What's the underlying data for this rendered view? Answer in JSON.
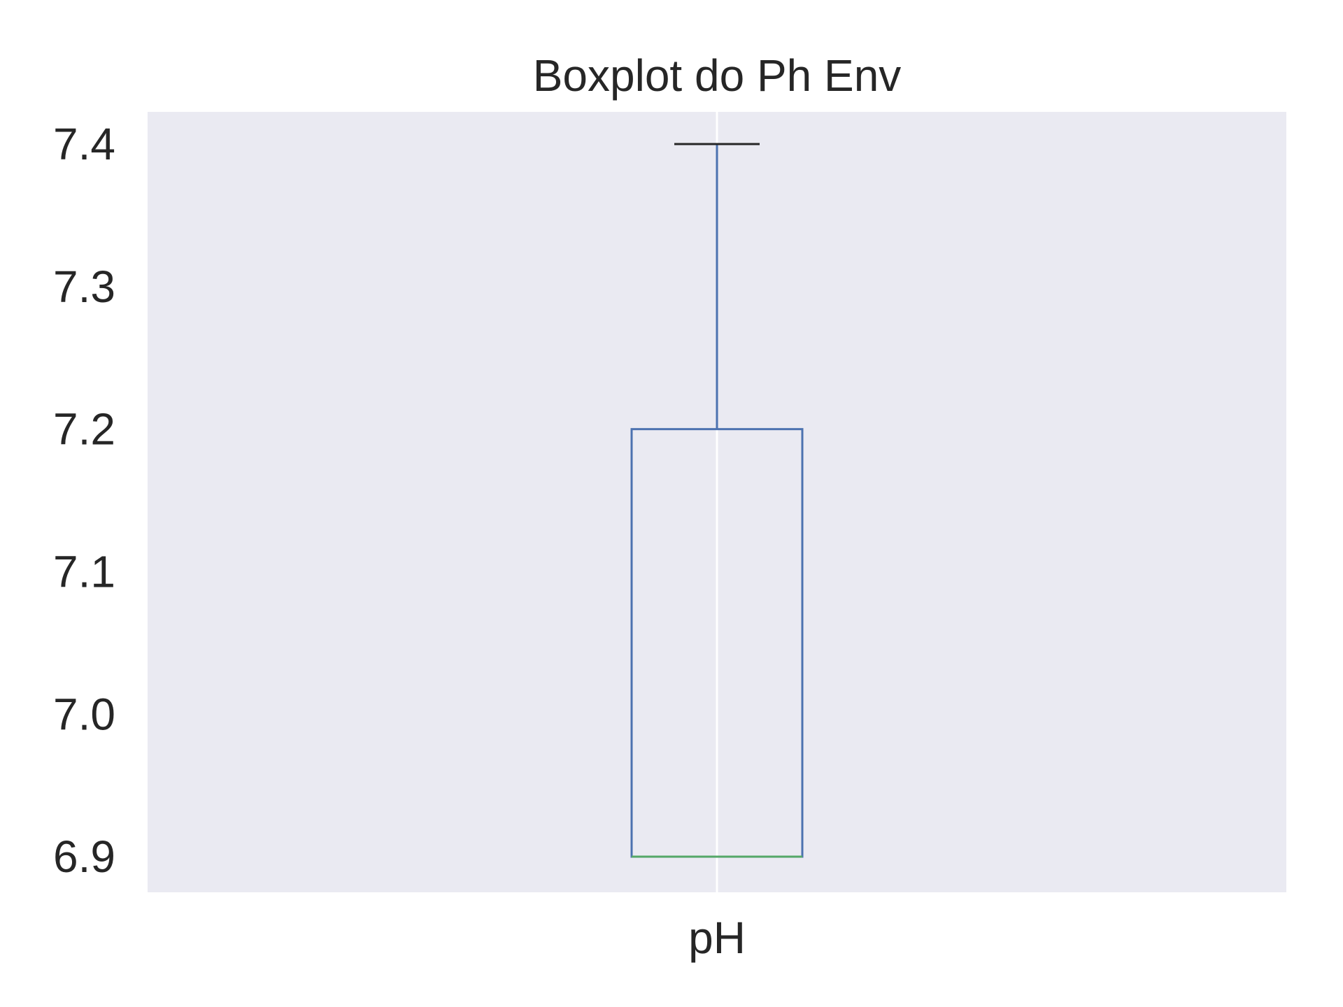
{
  "chart_data": {
    "type": "box",
    "title": "Boxplot do Ph Env",
    "xlabel": "",
    "ylabel": "",
    "categories": [
      "pH"
    ],
    "boxes": [
      {
        "name": "pH",
        "whisker_low": 6.9,
        "q1": 6.9,
        "median": 6.9,
        "q3": 7.2,
        "whisker_high": 7.4
      }
    ],
    "yticks": [
      6.9,
      7.0,
      7.1,
      7.2,
      7.3,
      7.4
    ],
    "ytick_labels": [
      "6.9",
      "7.0",
      "7.1",
      "7.2",
      "7.3",
      "7.4"
    ],
    "ylim": [
      6.875,
      7.4226
    ],
    "grid": true,
    "colors": {
      "plot_background": "#EAEAF2",
      "grid": "#FFFFFF",
      "box": "#4C72B0",
      "median": "#55A868",
      "cap": "#262626",
      "text": "#262626"
    }
  }
}
